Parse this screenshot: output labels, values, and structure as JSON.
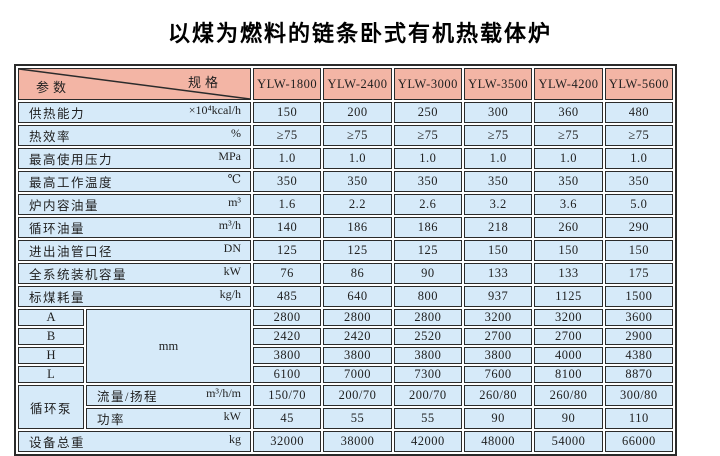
{
  "title": "以煤为燃料的链条卧式有机热载体炉",
  "colors": {
    "header_bg": "#f3b5a5",
    "row_bg": "#d6eaf9",
    "border": "#2b2b2b"
  },
  "table": {
    "corner": {
      "top_right": "规格",
      "bottom_left": "参数"
    },
    "models": [
      "YLW-1800",
      "YLW-2400",
      "YLW-3000",
      "YLW-3500",
      "YLW-4200",
      "YLW-5600"
    ],
    "param_rows": [
      {
        "name": "供热能力",
        "unit": "×10⁴kcal/h",
        "values": [
          "150",
          "200",
          "250",
          "300",
          "360",
          "480"
        ]
      },
      {
        "name": "热效率",
        "unit": "%",
        "values": [
          "≥75",
          "≥75",
          "≥75",
          "≥75",
          "≥75",
          "≥75"
        ]
      },
      {
        "name": "最高使用压力",
        "unit": "MPa",
        "values": [
          "1.0",
          "1.0",
          "1.0",
          "1.0",
          "1.0",
          "1.0"
        ]
      },
      {
        "name": "最高工作温度",
        "unit": "℃",
        "values": [
          "350",
          "350",
          "350",
          "350",
          "350",
          "350"
        ]
      },
      {
        "name": "炉内容油量",
        "unit": "m³",
        "values": [
          "1.6",
          "2.2",
          "2.6",
          "3.2",
          "3.6",
          "5.0"
        ]
      },
      {
        "name": "循环油量",
        "unit": "m³/h",
        "values": [
          "140",
          "186",
          "186",
          "218",
          "260",
          "290"
        ]
      },
      {
        "name": "进出油管口径",
        "unit": "DN",
        "values": [
          "125",
          "125",
          "125",
          "150",
          "150",
          "150"
        ]
      },
      {
        "name": "全系统装机容量",
        "unit": "kW",
        "values": [
          "76",
          "86",
          "90",
          "133",
          "133",
          "175"
        ]
      },
      {
        "name": "标煤耗量",
        "unit": "kg/h",
        "values": [
          "485",
          "640",
          "800",
          "937",
          "1125",
          "1500"
        ]
      }
    ],
    "dimensions": {
      "unit": "mm",
      "rows": [
        {
          "name": "A",
          "values": [
            "2800",
            "2800",
            "2800",
            "3200",
            "3200",
            "3600"
          ]
        },
        {
          "name": "B",
          "values": [
            "2420",
            "2420",
            "2520",
            "2700",
            "2700",
            "2900"
          ]
        },
        {
          "name": "H",
          "values": [
            "3800",
            "3800",
            "3800",
            "3800",
            "4000",
            "4380"
          ]
        },
        {
          "name": "L",
          "values": [
            "6100",
            "7000",
            "7300",
            "7600",
            "8100",
            "8870"
          ]
        }
      ]
    },
    "pump": {
      "label": "循环泵",
      "rows": [
        {
          "name": "流量/扬程",
          "unit": "m³/h/m",
          "values": [
            "150/70",
            "200/70",
            "200/70",
            "260/80",
            "260/80",
            "300/80"
          ]
        },
        {
          "name": "功率",
          "unit": "kW",
          "values": [
            "45",
            "55",
            "55",
            "90",
            "90",
            "110"
          ]
        }
      ]
    },
    "total_row": {
      "name": "设备总重",
      "unit": "kg",
      "values": [
        "32000",
        "38000",
        "42000",
        "48000",
        "54000",
        "66000"
      ]
    }
  }
}
